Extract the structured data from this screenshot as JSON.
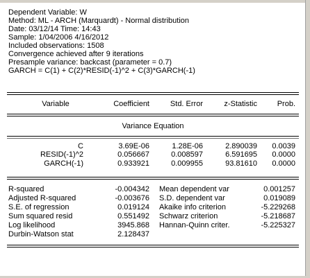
{
  "header": {
    "dependent_variable": "Dependent Variable: W",
    "method": "Method: ML - ARCH (Marquardt) - Normal distribution",
    "date": "Date: 03/12/14   Time: 14:43",
    "sample": "Sample: 1/04/2006 4/16/2012",
    "observations": "Included observations: 1508",
    "convergence": "Convergence achieved after 9 iterations",
    "presample": "Presample variance: backcast (parameter = 0.7)",
    "garch_spec": "GARCH = C(1) + C(2)*RESID(-1)^2 + C(3)*GARCH(-1)"
  },
  "columns": {
    "variable": "Variable",
    "coefficient": "Coefficient",
    "std_error": "Std. Error",
    "z_statistic": "z-Statistic",
    "prob": "Prob."
  },
  "section_title": "Variance Equation",
  "coefficients": [
    {
      "variable": "C",
      "coefficient": "3.69E-06",
      "std_error": "1.28E-06",
      "z_statistic": "2.890039",
      "prob": "0.0039"
    },
    {
      "variable": "RESID(-1)^2",
      "coefficient": "0.056667",
      "std_error": "0.008597",
      "z_statistic": "6.591695",
      "prob": "0.0000"
    },
    {
      "variable": "GARCH(-1)",
      "coefficient": "0.933921",
      "std_error": "0.009955",
      "z_statistic": "93.81610",
      "prob": "0.0000"
    }
  ],
  "stats": [
    {
      "label": "R-squared",
      "value": "-0.004342",
      "label2": "Mean dependent var",
      "value2": "0.001257"
    },
    {
      "label": "Adjusted R-squared",
      "value": "-0.003676",
      "label2": "S.D. dependent var",
      "value2": "0.019089"
    },
    {
      "label": "S.E. of regression",
      "value": "0.019124",
      "label2": "Akaike info criterion",
      "value2": "-5.229268"
    },
    {
      "label": "Sum squared resid",
      "value": "0.551492",
      "label2": "Schwarz criterion",
      "value2": "-5.218687"
    },
    {
      "label": "Log likelihood",
      "value": "3945.868",
      "label2": "Hannan-Quinn criter.",
      "value2": "-5.225327"
    },
    {
      "label": "Durbin-Watson stat",
      "value": "2.128437",
      "label2": "",
      "value2": ""
    }
  ]
}
